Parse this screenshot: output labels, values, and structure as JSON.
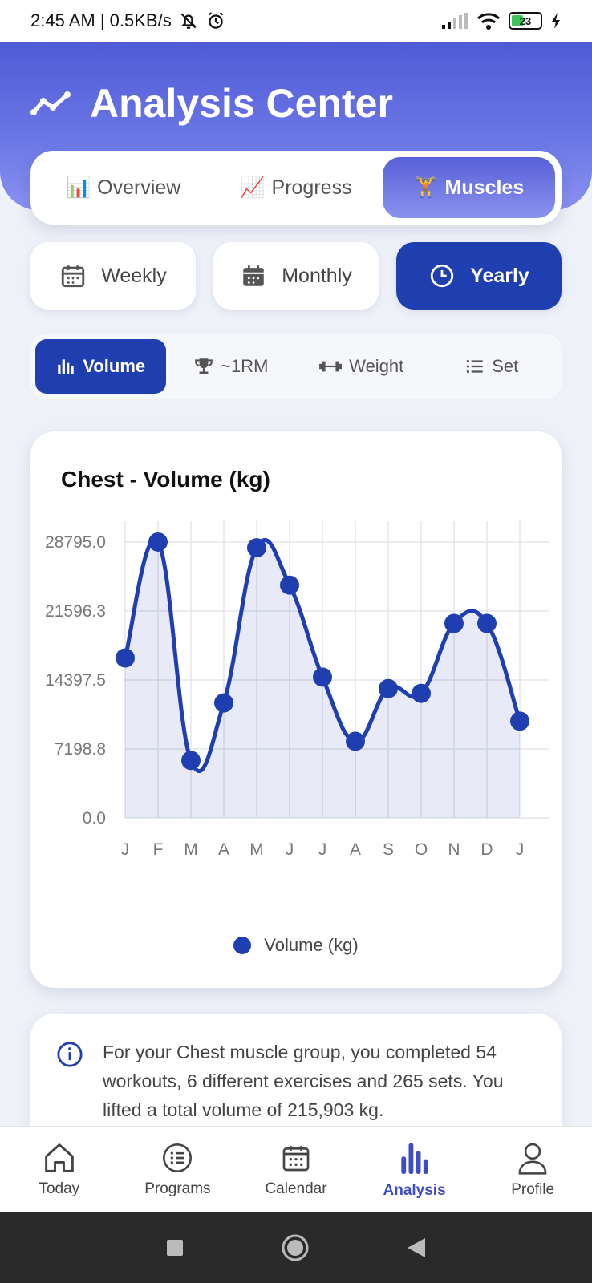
{
  "status_bar": {
    "time_speed": "2:45 AM | 0.5KB/s",
    "battery": "23"
  },
  "header": {
    "title": "Analysis Center",
    "icon": "trend-line-icon"
  },
  "main_tabs": [
    {
      "emoji": "📊",
      "label": "Overview",
      "active": false
    },
    {
      "emoji": "📈",
      "label": "Progress",
      "active": false
    },
    {
      "emoji": "🏋",
      "label": "Muscles",
      "active": true
    }
  ],
  "period_tabs": [
    {
      "label": "Weekly",
      "icon": "calendar-week-icon",
      "active": false
    },
    {
      "label": "Monthly",
      "icon": "calendar-month-icon",
      "active": false
    },
    {
      "label": "Yearly",
      "icon": "clock-icon",
      "active": true
    }
  ],
  "metric_tabs": [
    {
      "label": "Volume",
      "icon": "bar-chart-icon",
      "active": true
    },
    {
      "label": "~1RM",
      "icon": "trophy-icon",
      "active": false
    },
    {
      "label": "Weight",
      "icon": "dumbbell-icon",
      "active": false
    },
    {
      "label": "Set",
      "icon": "list-icon",
      "active": false
    }
  ],
  "chart_card": {
    "title": "Chest - Volume (kg)"
  },
  "chart_data": {
    "type": "line",
    "title": "Chest - Volume (kg)",
    "categories": [
      "J",
      "F",
      "M",
      "A",
      "M",
      "J",
      "J",
      "A",
      "S",
      "O",
      "N",
      "D",
      "J"
    ],
    "series": [
      {
        "name": "Volume (kg)",
        "values": [
          16700,
          28800,
          6000,
          12000,
          28200,
          24300,
          14700,
          8000,
          13500,
          13000,
          20300,
          20300,
          10100
        ]
      }
    ],
    "yticks": [
      "28795.0",
      "21596.3",
      "14397.5",
      "7198.8",
      "0.0"
    ],
    "ylim": [
      0,
      28795.0
    ],
    "grid": true,
    "legend": "bottom",
    "color": "#1f3fb0"
  },
  "info": {
    "text": "For your Chest muscle group, you completed 54 workouts, 6 different exercises and 265 sets. You lifted a total volume of 215,903 kg."
  },
  "bottom_nav": [
    {
      "label": "Today",
      "icon": "home-icon",
      "active": false
    },
    {
      "label": "Programs",
      "icon": "list-circle-icon",
      "active": false
    },
    {
      "label": "Calendar",
      "icon": "calendar-icon",
      "active": false
    },
    {
      "label": "Analysis",
      "icon": "bar-chart-icon",
      "active": true
    },
    {
      "label": "Profile",
      "icon": "user-icon",
      "active": false
    }
  ]
}
